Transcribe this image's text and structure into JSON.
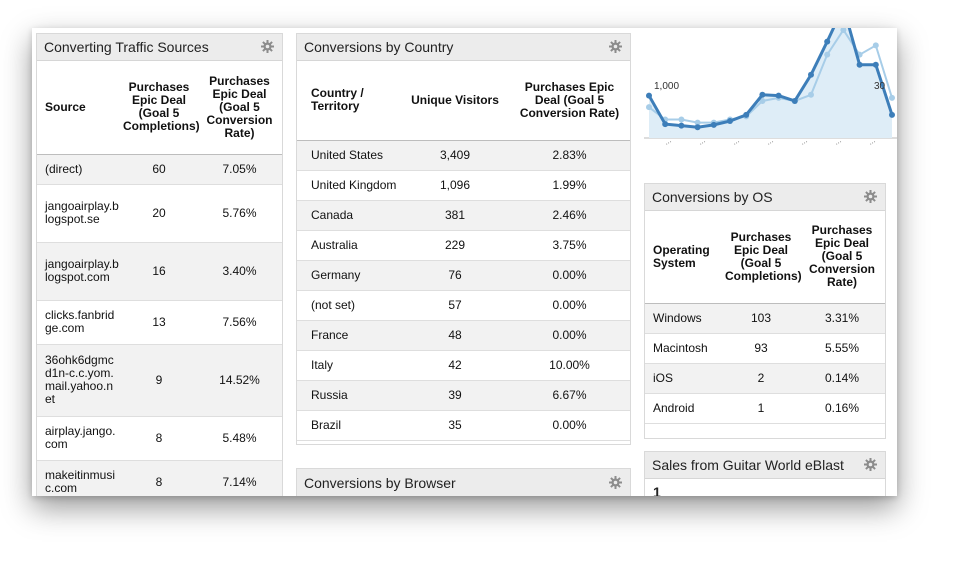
{
  "colors": {
    "header_bg": "#ececec",
    "row_alt": "#f2f2f2",
    "chart_line": "#3d7eb9",
    "chart_light": "#a7cde8",
    "chart_fill": "#deedf7"
  },
  "traffic": {
    "title": "Converting Traffic Sources",
    "columns": [
      "Source",
      "Purchases Epic Deal (Goal 5 Completions)",
      "Purchases Epic Deal (Goal 5 Conversion Rate)"
    ],
    "rows": [
      {
        "source": "(direct)",
        "completions": "60",
        "rate": "7.05%"
      },
      {
        "source": "jangoairplay.blogspot.se",
        "completions": "20",
        "rate": "5.76%"
      },
      {
        "source": "jangoairplay.blogspot.com",
        "completions": "16",
        "rate": "3.40%"
      },
      {
        "source": "clicks.fanbridge.com",
        "completions": "13",
        "rate": "7.56%"
      },
      {
        "source": "36ohk6dgmcd1n-c.c.yom.mail.yahoo.net",
        "completions": "9",
        "rate": "14.52%"
      },
      {
        "source": "airplay.jango.com",
        "completions": "8",
        "rate": "5.48%"
      },
      {
        "source": "makeitinmusic.com",
        "completions": "8",
        "rate": "7.14%"
      }
    ]
  },
  "country": {
    "title": "Conversions by Country",
    "columns": [
      "Country / Territory",
      "Unique Visitors",
      "Purchases Epic Deal (Goal 5 Conversion Rate)"
    ],
    "rows": [
      {
        "country": "United States",
        "visitors": "3,409",
        "rate": "2.83%"
      },
      {
        "country": "United Kingdom",
        "visitors": "1,096",
        "rate": "1.99%"
      },
      {
        "country": "Canada",
        "visitors": "381",
        "rate": "2.46%"
      },
      {
        "country": "Australia",
        "visitors": "229",
        "rate": "3.75%"
      },
      {
        "country": "Germany",
        "visitors": "76",
        "rate": "0.00%"
      },
      {
        "country": "(not set)",
        "visitors": "57",
        "rate": "0.00%"
      },
      {
        "country": "France",
        "visitors": "48",
        "rate": "0.00%"
      },
      {
        "country": "Italy",
        "visitors": "42",
        "rate": "10.00%"
      },
      {
        "country": "Russia",
        "visitors": "39",
        "rate": "6.67%"
      },
      {
        "country": "Brazil",
        "visitors": "35",
        "rate": "0.00%"
      }
    ]
  },
  "browser": {
    "title": "Conversions by Browser"
  },
  "os": {
    "title": "Conversions by OS",
    "columns": [
      "Operating System",
      "Purchases Epic Deal (Goal 5 Completions)",
      "Purchases Epic Deal (Goal 5 Conversion Rate)"
    ],
    "rows": [
      {
        "os": "Windows",
        "completions": "103",
        "rate": "3.31%"
      },
      {
        "os": "Macintosh",
        "completions": "93",
        "rate": "5.55%"
      },
      {
        "os": "iOS",
        "completions": "2",
        "rate": "0.14%"
      },
      {
        "os": "Android",
        "completions": "1",
        "rate": "0.16%"
      }
    ]
  },
  "sales": {
    "title": "Sales from Guitar World eBlast",
    "value": "1"
  },
  "chart_data": {
    "type": "line",
    "left_axis_label": "1,000",
    "right_axis_label": "30",
    "tick_labels": [
      "...",
      "...",
      "...",
      "...",
      "...",
      "...",
      "..."
    ],
    "series": [
      {
        "values": [
          550,
          180,
          160,
          140,
          170,
          220,
          300,
          560,
          550,
          480,
          820,
          1250,
          1700,
          950,
          950,
          300
        ]
      },
      {
        "values": [
          10,
          6,
          6,
          5,
          5,
          6,
          7,
          12,
          13,
          12,
          14,
          27,
          35,
          27,
          30,
          13
        ]
      }
    ],
    "y_max_left": 1400,
    "y_max_right": 35
  }
}
